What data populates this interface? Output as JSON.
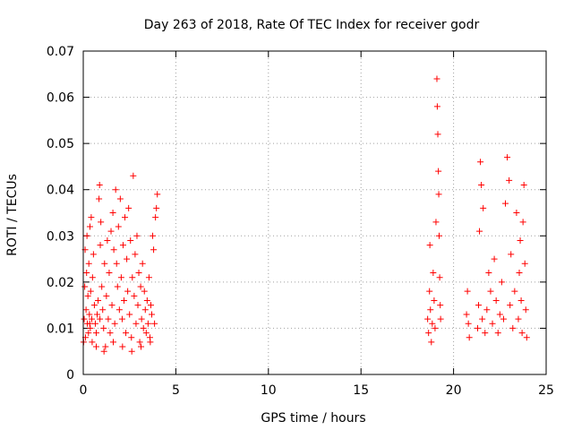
{
  "chart_data": {
    "type": "scatter",
    "title": "Day 263 of 2018, Rate Of TEC Index for receiver godr",
    "xlabel": "GPS time / hours",
    "ylabel": "ROTI / TECUs",
    "xlim": [
      0,
      25
    ],
    "ylim": [
      0,
      0.07
    ],
    "x_ticks": [
      0,
      5,
      10,
      15,
      20,
      25
    ],
    "y_ticks": [
      0,
      0.01,
      0.02,
      0.03,
      0.04,
      0.05,
      0.06,
      0.07
    ],
    "x_tick_labels": [
      "0",
      "5",
      "10",
      "15",
      "20",
      "25"
    ],
    "y_tick_labels": [
      "0",
      "0.01",
      "0.02",
      "0.03",
      "0.04",
      "0.05",
      "0.06",
      "0.07"
    ],
    "grid": true,
    "marker": "+",
    "series": [
      {
        "color": "#ff0000",
        "points": [
          [
            0.05,
            0.012
          ],
          [
            0.08,
            0.019
          ],
          [
            0.1,
            0.027
          ],
          [
            0.12,
            0.008
          ],
          [
            0.15,
            0.014
          ],
          [
            0.18,
            0.022
          ],
          [
            0.2,
            0.03
          ],
          [
            0.22,
            0.011
          ],
          [
            0.25,
            0.017
          ],
          [
            0.28,
            0.009
          ],
          [
            0.3,
            0.024
          ],
          [
            0.33,
            0.013
          ],
          [
            0.36,
            0.032
          ],
          [
            0.38,
            0.01
          ],
          [
            0.4,
            0.018
          ],
          [
            0.43,
            0.034
          ],
          [
            0.46,
            0.012
          ],
          [
            0.48,
            0.007
          ],
          [
            0.5,
            0.021
          ],
          [
            0.55,
            0.026
          ],
          [
            0.6,
            0.015
          ],
          [
            0.65,
            0.011
          ],
          [
            0.7,
            0.009
          ],
          [
            0.75,
            0.013
          ],
          [
            0.8,
            0.016
          ],
          [
            0.85,
            0.038
          ],
          [
            0.88,
            0.041
          ],
          [
            0.9,
            0.012
          ],
          [
            0.92,
            0.028
          ],
          [
            0.95,
            0.033
          ],
          [
            1.0,
            0.019
          ],
          [
            1.05,
            0.014
          ],
          [
            1.1,
            0.01
          ],
          [
            1.15,
            0.024
          ],
          [
            1.2,
            0.006
          ],
          [
            1.25,
            0.017
          ],
          [
            1.3,
            0.029
          ],
          [
            1.35,
            0.012
          ],
          [
            1.4,
            0.022
          ],
          [
            1.45,
            0.009
          ],
          [
            1.5,
            0.031
          ],
          [
            1.55,
            0.015
          ],
          [
            1.6,
            0.035
          ],
          [
            1.65,
            0.027
          ],
          [
            1.7,
            0.011
          ],
          [
            1.75,
            0.04
          ],
          [
            1.8,
            0.024
          ],
          [
            1.85,
            0.019
          ],
          [
            1.9,
            0.032
          ],
          [
            1.95,
            0.014
          ],
          [
            2.0,
            0.038
          ],
          [
            2.05,
            0.021
          ],
          [
            2.1,
            0.012
          ],
          [
            2.15,
            0.028
          ],
          [
            2.2,
            0.016
          ],
          [
            2.25,
            0.034
          ],
          [
            2.3,
            0.009
          ],
          [
            2.35,
            0.025
          ],
          [
            2.4,
            0.018
          ],
          [
            2.45,
            0.036
          ],
          [
            2.5,
            0.013
          ],
          [
            2.55,
            0.029
          ],
          [
            2.6,
            0.008
          ],
          [
            2.65,
            0.021
          ],
          [
            2.7,
            0.043
          ],
          [
            2.75,
            0.017
          ],
          [
            2.8,
            0.026
          ],
          [
            2.85,
            0.011
          ],
          [
            2.9,
            0.03
          ],
          [
            2.95,
            0.015
          ],
          [
            3.0,
            0.022
          ],
          [
            3.05,
            0.007
          ],
          [
            3.1,
            0.019
          ],
          [
            3.15,
            0.012
          ],
          [
            3.2,
            0.024
          ],
          [
            3.25,
            0.01
          ],
          [
            3.3,
            0.018
          ],
          [
            3.35,
            0.014
          ],
          [
            3.4,
            0.009
          ],
          [
            3.45,
            0.016
          ],
          [
            3.5,
            0.011
          ],
          [
            3.55,
            0.021
          ],
          [
            3.6,
            0.008
          ],
          [
            3.65,
            0.015
          ],
          [
            3.7,
            0.013
          ],
          [
            3.75,
            0.03
          ],
          [
            3.8,
            0.027
          ],
          [
            3.85,
            0.011
          ],
          [
            3.9,
            0.034
          ],
          [
            3.95,
            0.036
          ],
          [
            4.0,
            0.039
          ],
          [
            0.02,
            0.007
          ],
          [
            0.35,
            0.011
          ],
          [
            0.7,
            0.006
          ],
          [
            1.12,
            0.005
          ],
          [
            1.62,
            0.007
          ],
          [
            2.12,
            0.006
          ],
          [
            2.62,
            0.005
          ],
          [
            3.12,
            0.006
          ],
          [
            3.62,
            0.007
          ],
          [
            18.6,
            0.012
          ],
          [
            18.65,
            0.009
          ],
          [
            18.7,
            0.018
          ],
          [
            18.72,
            0.028
          ],
          [
            18.75,
            0.014
          ],
          [
            18.8,
            0.007
          ],
          [
            18.85,
            0.011
          ],
          [
            18.9,
            0.022
          ],
          [
            18.95,
            0.016
          ],
          [
            19.0,
            0.01
          ],
          [
            19.05,
            0.033
          ],
          [
            19.1,
            0.064
          ],
          [
            19.12,
            0.058
          ],
          [
            19.15,
            0.052
          ],
          [
            19.18,
            0.044
          ],
          [
            19.2,
            0.039
          ],
          [
            19.22,
            0.03
          ],
          [
            19.25,
            0.021
          ],
          [
            19.28,
            0.015
          ],
          [
            19.3,
            0.012
          ],
          [
            20.7,
            0.013
          ],
          [
            20.75,
            0.018
          ],
          [
            20.8,
            0.011
          ],
          [
            20.85,
            0.008
          ],
          [
            21.3,
            0.01
          ],
          [
            21.35,
            0.015
          ],
          [
            21.4,
            0.031
          ],
          [
            21.45,
            0.046
          ],
          [
            21.5,
            0.041
          ],
          [
            21.55,
            0.012
          ],
          [
            21.6,
            0.036
          ],
          [
            21.7,
            0.009
          ],
          [
            21.8,
            0.014
          ],
          [
            21.9,
            0.022
          ],
          [
            22.0,
            0.018
          ],
          [
            22.1,
            0.011
          ],
          [
            22.2,
            0.025
          ],
          [
            22.3,
            0.016
          ],
          [
            22.4,
            0.009
          ],
          [
            22.5,
            0.013
          ],
          [
            22.6,
            0.02
          ],
          [
            22.7,
            0.012
          ],
          [
            22.8,
            0.037
          ],
          [
            22.9,
            0.047
          ],
          [
            23.0,
            0.042
          ],
          [
            23.05,
            0.015
          ],
          [
            23.1,
            0.026
          ],
          [
            23.2,
            0.01
          ],
          [
            23.3,
            0.018
          ],
          [
            23.4,
            0.035
          ],
          [
            23.5,
            0.012
          ],
          [
            23.55,
            0.022
          ],
          [
            23.6,
            0.029
          ],
          [
            23.65,
            0.016
          ],
          [
            23.7,
            0.009
          ],
          [
            23.75,
            0.033
          ],
          [
            23.8,
            0.041
          ],
          [
            23.85,
            0.024
          ],
          [
            23.9,
            0.014
          ],
          [
            23.95,
            0.008
          ]
        ]
      }
    ]
  }
}
